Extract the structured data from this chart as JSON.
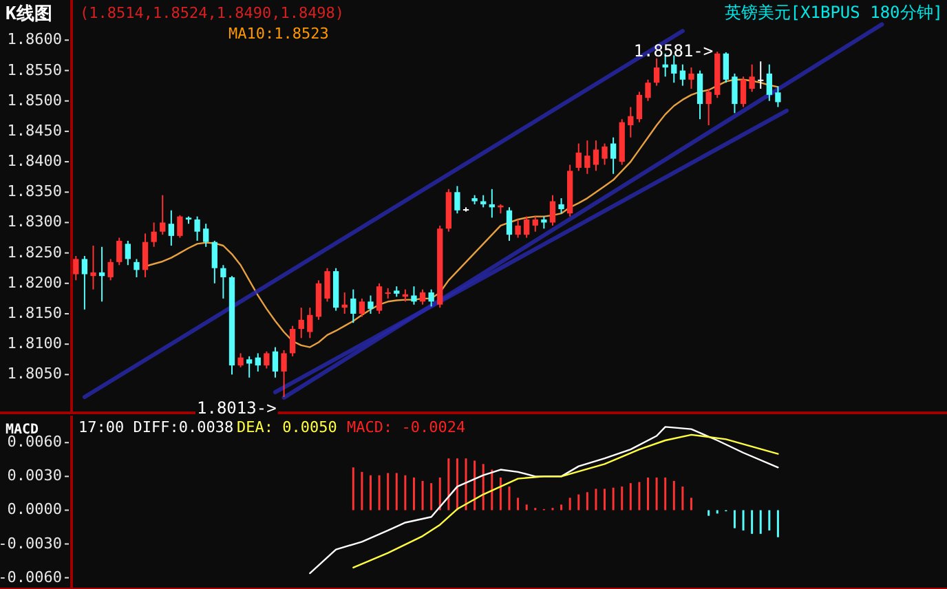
{
  "chart_data": [
    {
      "type": "candlestick",
      "title": "K线图",
      "subtitle": "英镑美元[X1BPUS 180分钟]",
      "annotations": [
        "(1.8514,1.8524,1.8490,1.8498)",
        "MA10:1.8523",
        {
          "text": "1.8581->",
          "y": 1.8581
        },
        "1.8013->"
      ],
      "categories": [
        null,
        null,
        null,
        null,
        null,
        null,
        null,
        null,
        null,
        null,
        null,
        null,
        null,
        null,
        null,
        null,
        null,
        null,
        null,
        null,
        null,
        null,
        null,
        null,
        null,
        null,
        null,
        null,
        null,
        null,
        null,
        null,
        null,
        null,
        null,
        null,
        null,
        null,
        null,
        null,
        null,
        null,
        null,
        null,
        null,
        null,
        null,
        null,
        null,
        null,
        null,
        null,
        null,
        null,
        null,
        null,
        null,
        null,
        null,
        null,
        null,
        null,
        null,
        null,
        null,
        null,
        null,
        null,
        null,
        null,
        null,
        null,
        null,
        null,
        null,
        null,
        null,
        null,
        null,
        null,
        null,
        null,
        null,
        null,
        null,
        null,
        null,
        null,
        null,
        null,
        null,
        null,
        null,
        null,
        null,
        null,
        null,
        null,
        null,
        null,
        null
      ],
      "ohlc": [
        [
          1.8215,
          1.8245,
          1.8205,
          1.824
        ],
        [
          1.824,
          1.8245,
          1.8157,
          1.8215
        ],
        [
          1.8212,
          1.8262,
          1.819,
          1.8218
        ],
        [
          1.8218,
          1.826,
          1.817,
          1.8212
        ],
        [
          1.821,
          1.824,
          1.8205,
          1.8235
        ],
        [
          1.8235,
          1.8275,
          1.823,
          1.827
        ],
        [
          1.8265,
          1.827,
          1.823,
          1.824
        ],
        [
          1.8235,
          1.824,
          1.821,
          1.8222
        ],
        [
          1.8222,
          1.8282,
          1.821,
          1.8268
        ],
        [
          1.8268,
          1.83,
          1.826,
          1.8285
        ],
        [
          1.8285,
          1.8345,
          1.828,
          1.83
        ],
        [
          1.8298,
          1.832,
          1.8262,
          1.8278
        ],
        [
          1.8278,
          1.8312,
          1.8275,
          1.831
        ],
        [
          1.8308,
          1.831,
          1.8298,
          1.8305
        ],
        [
          1.8305,
          1.831,
          1.827,
          1.8285
        ],
        [
          1.829,
          1.8298,
          1.826,
          1.8268
        ],
        [
          1.8268,
          1.827,
          1.82,
          1.8225
        ],
        [
          1.8225,
          1.823,
          1.8175,
          1.821
        ],
        [
          1.821,
          1.8212,
          1.805,
          1.8065
        ],
        [
          1.8065,
          1.8085,
          1.8062,
          1.8078
        ],
        [
          1.8075,
          1.808,
          1.8045,
          1.8068
        ],
        [
          1.8078,
          1.8085,
          1.8055,
          1.8065
        ],
        [
          1.8065,
          1.8088,
          1.806,
          1.8085
        ],
        [
          1.8088,
          1.8095,
          1.8045,
          1.8055
        ],
        [
          1.8055,
          1.809,
          1.8013,
          1.8085
        ],
        [
          1.8085,
          1.813,
          1.808,
          1.8125
        ],
        [
          1.8125,
          1.816,
          1.811,
          1.814
        ],
        [
          1.812,
          1.816,
          1.811,
          1.8148
        ],
        [
          1.8145,
          1.8205,
          1.814,
          1.82
        ],
        [
          1.8175,
          1.8225,
          1.817,
          1.822
        ],
        [
          1.822,
          1.8225,
          1.8155,
          1.816
        ],
        [
          1.816,
          1.8185,
          1.815,
          1.8165
        ],
        [
          1.8175,
          1.819,
          1.8135,
          1.815
        ],
        [
          1.815,
          1.8175,
          1.8145,
          1.817
        ],
        [
          1.817,
          1.818,
          1.815,
          1.8158
        ],
        [
          1.8155,
          1.82,
          1.815,
          1.8195
        ],
        [
          1.8183,
          1.8192,
          1.8175,
          1.8185
        ],
        [
          1.8188,
          1.8195,
          1.8178,
          1.8183
        ],
        [
          1.8178,
          1.819,
          1.817,
          1.8182
        ],
        [
          1.818,
          1.8195,
          1.8165,
          1.817
        ],
        [
          1.817,
          1.819,
          1.8165,
          1.8185
        ],
        [
          1.8185,
          1.819,
          1.8162,
          1.817
        ],
        [
          1.8165,
          1.8295,
          1.816,
          1.829
        ],
        [
          1.829,
          1.8355,
          1.8285,
          1.835
        ],
        [
          1.835,
          1.836,
          1.8315,
          1.832
        ],
        [
          1.8322,
          1.8325,
          1.8318,
          1.8322
        ],
        [
          1.834,
          1.8345,
          1.833,
          1.8335
        ],
        [
          1.8335,
          1.8345,
          1.8325,
          1.833
        ],
        [
          1.833,
          1.8355,
          1.8308,
          1.8325
        ],
        [
          1.8325,
          1.833,
          1.8315,
          1.8328
        ],
        [
          1.832,
          1.8325,
          1.827,
          1.828
        ],
        [
          1.828,
          1.8305,
          1.8275,
          1.8295
        ],
        [
          1.828,
          1.831,
          1.8275,
          1.8305
        ],
        [
          1.8295,
          1.831,
          1.8285,
          1.8305
        ],
        [
          1.8305,
          1.831,
          1.829,
          1.83
        ],
        [
          1.83,
          1.8345,
          1.8295,
          1.8335
        ],
        [
          1.833,
          1.834,
          1.8315,
          1.8322
        ],
        [
          1.8315,
          1.8395,
          1.831,
          1.8385
        ],
        [
          1.839,
          1.843,
          1.8385,
          1.8415
        ],
        [
          1.839,
          1.8435,
          1.838,
          1.841
        ],
        [
          1.8395,
          1.8435,
          1.8385,
          1.842
        ],
        [
          1.8405,
          1.843,
          1.8395,
          1.8425
        ],
        [
          1.843,
          1.844,
          1.838,
          1.8405
        ],
        [
          1.84,
          1.847,
          1.8395,
          1.8465
        ],
        [
          1.846,
          1.849,
          1.844,
          1.8475
        ],
        [
          1.847,
          1.8515,
          1.8465,
          1.851
        ],
        [
          1.8505,
          1.8535,
          1.85,
          1.853
        ],
        [
          1.853,
          1.857,
          1.8525,
          1.8555
        ],
        [
          1.856,
          1.8578,
          1.854,
          1.8555
        ],
        [
          1.856,
          1.8575,
          1.853,
          1.8545
        ],
        [
          1.855,
          1.856,
          1.8525,
          1.8535
        ],
        [
          1.8535,
          1.8555,
          1.852,
          1.8545
        ],
        [
          1.8545,
          1.855,
          1.847,
          1.8495
        ],
        [
          1.8495,
          1.852,
          1.846,
          1.8515
        ],
        [
          1.851,
          1.8581,
          1.8505,
          1.8578
        ],
        [
          1.8578,
          1.858,
          1.853,
          1.8535
        ],
        [
          1.854,
          1.8545,
          1.848,
          1.8495
        ],
        [
          1.8495,
          1.854,
          1.849,
          1.8535
        ],
        [
          1.852,
          1.856,
          1.8515,
          1.854
        ],
        [
          1.8535,
          1.8565,
          1.852,
          1.8535
        ],
        [
          1.8545,
          1.856,
          1.85,
          1.851
        ],
        [
          1.8514,
          1.8524,
          1.849,
          1.8498
        ],
        null,
        null,
        null,
        null,
        null,
        null,
        null,
        null,
        null,
        null,
        null,
        null,
        null,
        null,
        null,
        null,
        null,
        null,
        null
      ],
      "colors": [
        "#ff3232",
        "#54fcfc",
        "#ff3232",
        "#54fcfc",
        "#ff3232",
        "#ff3232",
        "#54fcfc",
        "#54fcfc",
        "#ff3232",
        "#ff3232",
        "#ff3232",
        "#54fcfc",
        "#ff3232",
        "#54fcfc",
        "#54fcfc",
        "#54fcfc",
        "#54fcfc",
        "#54fcfc",
        "#54fcfc",
        "#ff3232",
        "#54fcfc",
        "#54fcfc",
        "#ff3232",
        "#54fcfc",
        "#ff3232",
        "#ff3232",
        "#ff3232",
        "#ff3232",
        "#ff3232",
        "#ff3232",
        "#54fcfc",
        "#ff3232",
        "#54fcfc",
        "#ff3232",
        "#54fcfc",
        "#ff3232",
        "#ff3232",
        "#54fcfc",
        "#ff3232",
        "#54fcfc",
        "#ff3232",
        "#54fcfc",
        "#ff3232",
        "#ff3232",
        "#54fcfc",
        "#ffffff",
        "#54fcfc",
        "#54fcfc",
        "#54fcfc",
        "#ff3232",
        "#54fcfc",
        "#ff3232",
        "#ff3232",
        "#ff3232",
        "#54fcfc",
        "#ff3232",
        "#54fcfc",
        "#ff3232",
        "#ff3232",
        "#ff3232",
        "#ff3232",
        "#ff3232",
        "#54fcfc",
        "#ff3232",
        "#ff3232",
        "#ff3232",
        "#ff3232",
        "#ff3232",
        "#54fcfc",
        "#54fcfc",
        "#54fcfc",
        "#ff3232",
        "#54fcfc",
        "#ff3232",
        "#ff3232",
        "#54fcfc",
        "#54fcfc",
        "#ff3232",
        "#ff3232",
        "#ffffff",
        "#54fcfc",
        "#54fcfc",
        null,
        null,
        null,
        null,
        null,
        null,
        null,
        null,
        null,
        null,
        null,
        null,
        null,
        null,
        null,
        null,
        null,
        null,
        null
      ],
      "series": [
        {
          "type": "line",
          "color": "#e8a040",
          "values": [
            null,
            null,
            null,
            null,
            null,
            null,
            null,
            null,
            1.8228,
            1.8232,
            1.8236,
            1.8242,
            1.825,
            1.8258,
            1.8265,
            1.8267,
            1.8266,
            1.8262,
            1.8248,
            1.823,
            1.8205,
            1.818,
            1.8158,
            1.8138,
            1.812,
            1.8105,
            1.8098,
            1.8095,
            1.8103,
            1.8115,
            1.8122,
            1.813,
            1.8138,
            1.8148,
            1.8157,
            1.8165,
            1.817,
            1.8172,
            1.8173,
            1.8173,
            1.8175,
            1.8175,
            1.8185,
            1.8205,
            1.822,
            1.8235,
            1.825,
            1.8265,
            1.828,
            1.8295,
            1.83,
            1.8305,
            1.8308,
            1.831,
            1.831,
            1.8312,
            1.8315,
            1.8325,
            1.8332,
            1.834,
            1.835,
            1.836,
            1.837,
            1.8385,
            1.84,
            1.842,
            1.844,
            1.846,
            1.8478,
            1.8492,
            1.8502,
            1.851,
            1.8515,
            1.8518,
            1.8525,
            1.8532,
            1.8535,
            1.8535,
            1.8533,
            1.853,
            1.8526,
            1.8523,
            null,
            null,
            null,
            null,
            null,
            null,
            null,
            null,
            null,
            null,
            null,
            null,
            null,
            null,
            null,
            null,
            null,
            null,
            null
          ]
        },
        {
          "type": "line",
          "color": "#2828a8",
          "values": [
            null,
            1.8013,
            null,
            null,
            null,
            null,
            null,
            null,
            null,
            null,
            null,
            null,
            null,
            null,
            null,
            null,
            null,
            null,
            null,
            null,
            null,
            null,
            null,
            null,
            null,
            null,
            null,
            null,
            null,
            null,
            null,
            null,
            null,
            null,
            null,
            null,
            null,
            null,
            null,
            null,
            null,
            null,
            null,
            null,
            null,
            null,
            null,
            null,
            null,
            null,
            null,
            null,
            null,
            null,
            null,
            null,
            null,
            null,
            null,
            null,
            null,
            null,
            null,
            null,
            null,
            null,
            null,
            null,
            null,
            null,
            1.8615,
            null,
            null,
            null,
            null,
            null,
            null,
            null,
            null,
            null,
            null,
            null,
            null,
            null,
            null,
            null,
            null,
            null,
            null,
            null,
            null,
            null,
            null,
            null,
            null,
            null,
            null,
            null,
            null,
            null,
            null
          ]
        },
        {
          "type": "line",
          "color": "#2828a8",
          "values": [
            null,
            null,
            null,
            null,
            null,
            null,
            null,
            null,
            null,
            null,
            null,
            null,
            null,
            null,
            null,
            null,
            null,
            null,
            null,
            null,
            null,
            null,
            null,
            null,
            1.8012,
            null,
            null,
            null,
            null,
            null,
            null,
            null,
            null,
            null,
            null,
            null,
            null,
            null,
            null,
            null,
            null,
            null,
            null,
            null,
            null,
            null,
            null,
            null,
            null,
            null,
            null,
            null,
            null,
            null,
            null,
            null,
            null,
            null,
            null,
            null,
            null,
            null,
            null,
            null,
            null,
            null,
            null,
            null,
            null,
            null,
            null,
            null,
            null,
            null,
            null,
            null,
            null,
            null,
            null,
            null,
            null,
            null,
            null,
            null,
            null,
            null,
            null,
            null,
            null,
            null,
            null,
            null,
            null,
            1.8626,
            null,
            null,
            null,
            null,
            null,
            null,
            null
          ]
        },
        {
          "type": "line",
          "color": "#2828a8",
          "values": [
            null,
            null,
            null,
            null,
            null,
            null,
            null,
            null,
            null,
            null,
            null,
            null,
            null,
            null,
            null,
            null,
            null,
            null,
            null,
            null,
            null,
            null,
            null,
            1.8021,
            null,
            null,
            null,
            null,
            null,
            null,
            null,
            null,
            null,
            null,
            null,
            null,
            null,
            null,
            null,
            null,
            null,
            null,
            null,
            null,
            null,
            null,
            null,
            null,
            null,
            null,
            null,
            null,
            null,
            null,
            null,
            null,
            null,
            null,
            null,
            null,
            null,
            null,
            null,
            null,
            null,
            null,
            null,
            null,
            null,
            null,
            null,
            null,
            null,
            null,
            null,
            null,
            null,
            null,
            null,
            null,
            null,
            null,
            1.8484,
            null,
            null,
            null,
            null,
            null,
            null,
            null,
            null,
            null,
            null,
            null,
            null,
            null,
            null,
            null,
            null,
            null,
            null
          ]
        }
      ],
      "ylim": [
        1.7987,
        1.8666
      ],
      "yticks": [
        {
          "value": 1.805,
          "label": "1.8050"
        },
        {
          "value": 1.81,
          "label": "1.8100"
        },
        {
          "value": 1.815,
          "label": "1.8150"
        },
        {
          "value": 1.82,
          "label": "1.8200"
        },
        {
          "value": 1.825,
          "label": "1.8250"
        },
        {
          "value": 1.83,
          "label": "1.8300"
        },
        {
          "value": 1.835,
          "label": "1.8350"
        },
        {
          "value": 1.84,
          "label": "1.8400"
        },
        {
          "value": 1.845,
          "label": "1.8450"
        },
        {
          "value": 1.85,
          "label": "1.8500"
        },
        {
          "value": 1.855,
          "label": "1.8550"
        },
        {
          "value": 1.86,
          "label": "1.8600"
        }
      ],
      "tick_labels": "y"
    },
    {
      "type": "bar",
      "title": "MACD",
      "annotations": [
        "17:00 DIFF:0.0038",
        "DEA: 0.0050",
        "MACD: -0.0024"
      ],
      "categories": [
        null,
        null,
        null,
        null,
        null,
        null,
        null,
        null,
        null,
        null,
        null,
        null,
        null,
        null,
        null,
        null,
        null,
        null,
        null,
        null,
        null,
        null,
        null,
        null,
        null,
        null,
        null,
        null,
        null,
        null,
        null,
        null,
        null,
        null,
        null,
        null,
        null,
        null,
        null,
        null,
        null,
        null,
        null,
        null,
        null,
        null,
        null,
        null,
        null,
        null,
        null,
        null,
        null,
        null,
        null,
        null,
        null,
        null,
        null,
        null,
        null,
        null,
        null,
        null,
        null,
        null,
        null,
        null,
        null,
        null,
        null,
        null,
        null,
        null,
        null,
        null,
        null,
        null,
        null,
        null,
        null,
        null,
        null,
        null,
        null,
        null,
        null,
        null,
        null,
        null,
        null,
        null,
        null,
        null,
        null,
        null,
        null,
        null,
        null,
        null,
        null
      ],
      "series": [
        {
          "color": "#ff3232",
          "values": [
            null,
            null,
            null,
            null,
            null,
            null,
            null,
            null,
            null,
            null,
            null,
            null,
            null,
            null,
            null,
            null,
            null,
            null,
            null,
            null,
            null,
            null,
            null,
            null,
            null,
            null,
            null,
            null,
            null,
            null,
            null,
            null,
            0.0038,
            0.0034,
            0.0031,
            0.0031,
            0.0033,
            0.0033,
            0.0031,
            0.0029,
            0.0026,
            0.0024,
            0.0029,
            0.0046,
            0.0046,
            0.0046,
            0.0044,
            0.0041,
            0.0036,
            0.0029,
            0.0021,
            0.0011,
            0.0005,
            0.0002,
            0.0001,
            0.0002,
            0.0005,
            0.0011,
            0.0014,
            0.0016,
            0.0019,
            0.0019,
            0.002,
            0.0021,
            0.0024,
            0.0025,
            0.0029,
            0.0029,
            0.0029,
            0.0026,
            0.0021,
            0.0011,
            null,
            null,
            null,
            null,
            null,
            null,
            null,
            null,
            null,
            null,
            null,
            null,
            null,
            null,
            null,
            null,
            null,
            null,
            null,
            null,
            null,
            null,
            null,
            null,
            null,
            null,
            null,
            null,
            null
          ]
        },
        {
          "color": "#54fcfc",
          "values": [
            null,
            null,
            null,
            null,
            null,
            null,
            null,
            null,
            null,
            null,
            null,
            null,
            null,
            null,
            null,
            null,
            null,
            null,
            null,
            null,
            null,
            null,
            null,
            null,
            null,
            null,
            null,
            null,
            null,
            null,
            null,
            null,
            null,
            null,
            null,
            null,
            null,
            null,
            null,
            null,
            null,
            null,
            null,
            null,
            null,
            null,
            null,
            null,
            null,
            null,
            null,
            null,
            null,
            null,
            null,
            null,
            null,
            null,
            null,
            null,
            null,
            null,
            null,
            null,
            null,
            null,
            null,
            null,
            null,
            null,
            null,
            null,
            null,
            -0.0005,
            -0.0003,
            -0.0001,
            -0.0016,
            -0.0018,
            -0.0021,
            -0.0021,
            -0.0018,
            -0.0024,
            null,
            null,
            null,
            null,
            null,
            null,
            null,
            null,
            null,
            null,
            null,
            null,
            null,
            null,
            null,
            null,
            null,
            null,
            null
          ]
        },
        {
          "type": "line",
          "color": "#ffffff",
          "values": [
            null,
            null,
            null,
            null,
            null,
            null,
            null,
            null,
            null,
            null,
            null,
            null,
            null,
            null,
            null,
            null,
            null,
            null,
            null,
            null,
            null,
            null,
            null,
            null,
            null,
            null,
            null,
            -0.0056,
            null,
            null,
            -0.0035,
            null,
            null,
            -0.0028,
            null,
            null,
            -0.0018,
            null,
            -0.0011,
            null,
            null,
            -0.0006,
            null,
            null,
            0.0021,
            null,
            null,
            0.0031,
            null,
            0.0036,
            null,
            0.0034,
            null,
            0.003,
            null,
            null,
            0.003,
            null,
            0.0039,
            null,
            null,
            0.0046,
            null,
            null,
            0.0054,
            null,
            null,
            0.0066,
            0.0074,
            null,
            null,
            0.0072,
            null,
            null,
            0.0062,
            null,
            null,
            0.0051,
            null,
            null,
            null,
            0.0038,
            null,
            null,
            null,
            null,
            null,
            null,
            null,
            null,
            null,
            null,
            null,
            null,
            null,
            null,
            null,
            null,
            null,
            null,
            null
          ]
        },
        {
          "type": "line",
          "color": "#ffff40",
          "values": [
            null,
            null,
            null,
            null,
            null,
            null,
            null,
            null,
            null,
            null,
            null,
            null,
            null,
            null,
            null,
            null,
            null,
            null,
            null,
            null,
            null,
            null,
            null,
            null,
            null,
            null,
            null,
            null,
            null,
            null,
            null,
            null,
            -0.0051,
            null,
            null,
            null,
            -0.0038,
            null,
            null,
            null,
            -0.0023,
            null,
            -0.0013,
            null,
            0.0001,
            null,
            null,
            0.0014,
            null,
            0.0021,
            null,
            0.0028,
            null,
            null,
            0.003,
            null,
            0.003,
            null,
            null,
            null,
            null,
            0.0041,
            null,
            null,
            null,
            0.0054,
            null,
            null,
            0.0062,
            null,
            null,
            0.0067,
            null,
            null,
            null,
            0.0063,
            null,
            null,
            null,
            null,
            null,
            0.005,
            null,
            null,
            null,
            null,
            null,
            null,
            null,
            null,
            null,
            null,
            null,
            null,
            null,
            null,
            null,
            null,
            null,
            null,
            null
          ]
        }
      ],
      "ylim": [
        -0.007,
        0.0084
      ],
      "yticks": [
        {
          "value": 0.006,
          "label": "0.0060"
        },
        {
          "value": 0.003,
          "label": "0.0030"
        },
        {
          "value": 0,
          "label": "0.0000"
        },
        {
          "value": -0.003,
          "label": "-0.0030"
        },
        {
          "value": -0.006,
          "label": "-0.0060"
        }
      ],
      "tick_labels": "y"
    }
  ]
}
